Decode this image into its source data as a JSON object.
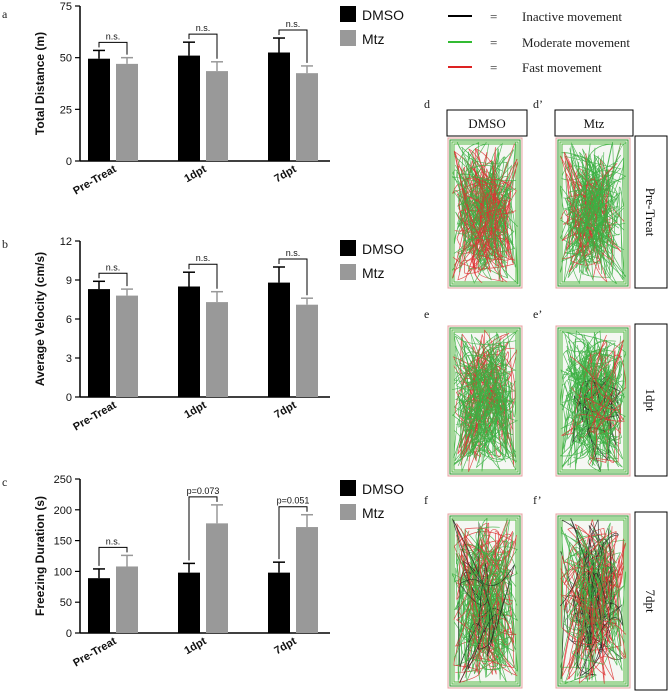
{
  "chart_data": [
    {
      "type": "bar",
      "panel": "a",
      "ylabel": "Total Distance (m)",
      "categories": [
        "Pre-Treat",
        "1dpt",
        "7dpt"
      ],
      "ylim": [
        0,
        75
      ],
      "yticks": [
        "0",
        "25",
        "50",
        "75"
      ],
      "series": [
        {
          "name": "DMSO",
          "color": "#000000",
          "values": [
            49.5,
            51,
            52.5
          ],
          "errors": [
            4,
            6.5,
            7
          ]
        },
        {
          "name": "Mtz",
          "color": "#999999",
          "values": [
            47,
            43.5,
            42.5
          ],
          "errors": [
            3,
            4.5,
            3.5
          ]
        }
      ],
      "significance": [
        "n.s.",
        "n.s.",
        "n.s."
      ]
    },
    {
      "type": "bar",
      "panel": "b",
      "ylabel": "Average Velocity (cm/s)",
      "categories": [
        "Pre-Treat",
        "1dpt",
        "7dpt"
      ],
      "ylim": [
        0,
        12
      ],
      "yticks": [
        "0",
        "3",
        "6",
        "9",
        "12"
      ],
      "series": [
        {
          "name": "DMSO",
          "color": "#000000",
          "values": [
            8.3,
            8.5,
            8.8
          ],
          "errors": [
            0.6,
            1.1,
            1.2
          ]
        },
        {
          "name": "Mtz",
          "color": "#999999",
          "values": [
            7.8,
            7.3,
            7.1
          ],
          "errors": [
            0.5,
            0.8,
            0.5
          ]
        }
      ],
      "significance": [
        "n.s.",
        "n.s.",
        "n.s."
      ]
    },
    {
      "type": "bar",
      "panel": "c",
      "ylabel": "Freezing Duration (s)",
      "categories": [
        "Pre-Treat",
        "1dpt",
        "7dpt"
      ],
      "ylim": [
        0,
        250
      ],
      "yticks": [
        "0",
        "50",
        "100",
        "150",
        "200",
        "250"
      ],
      "series": [
        {
          "name": "DMSO",
          "color": "#000000",
          "values": [
            89,
            98,
            98
          ],
          "errors": [
            15,
            15,
            17
          ]
        },
        {
          "name": "Mtz",
          "color": "#999999",
          "values": [
            108,
            178,
            172
          ],
          "errors": [
            18,
            30,
            20
          ]
        }
      ],
      "significance": [
        "n.s.",
        "p=0.073",
        "p=0.051"
      ]
    }
  ],
  "legend": {
    "dmso": "DMSO",
    "mtz": "Mtz",
    "dmso_color": "#000000",
    "mtz_color": "#999999"
  },
  "movement_key": {
    "equals": "=",
    "items": [
      {
        "label": "Inactive movement",
        "color": "#000000"
      },
      {
        "label": "Moderate movement",
        "color": "#33bb33"
      },
      {
        "label": "Fast movement",
        "color": "#dd2222"
      }
    ]
  },
  "track_panels": {
    "column_headers": [
      "DMSO",
      "Mtz"
    ],
    "row_labels": [
      "Pre-Treat",
      "1dpt",
      "7dpt"
    ],
    "panel_letters": [
      "d",
      "d’",
      "e",
      "e’",
      "f",
      "f’"
    ]
  }
}
